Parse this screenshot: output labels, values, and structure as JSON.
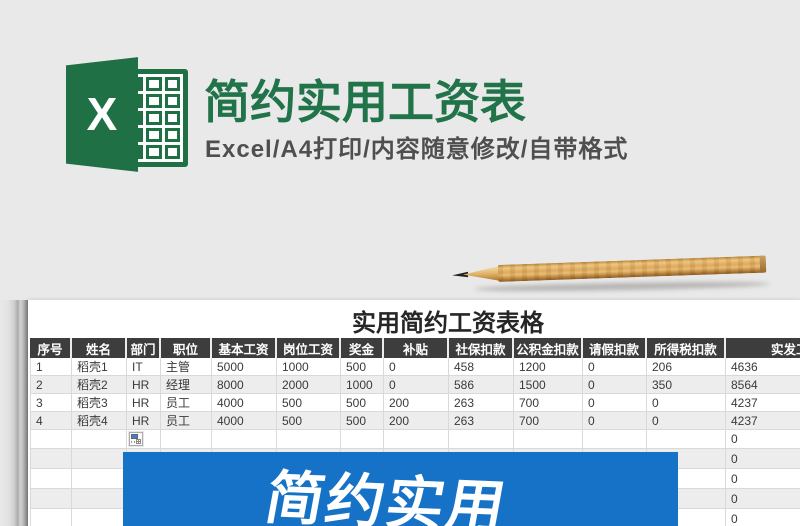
{
  "hero": {
    "title": "简约实用工资表",
    "subtitle": "Excel/A4打印/内容随意修改/自带格式",
    "logo_letter": "X",
    "brand_green": "#1F7145",
    "subtitle_gray": "#4F4F4F"
  },
  "banner": {
    "text": "简约实用",
    "color": "#1572C6"
  },
  "sheet": {
    "title": "实用简约工资表格",
    "header_bg": "#3D3D3D",
    "table": {
      "headers": [
        "序号",
        "姓名",
        "部门",
        "职位",
        "基本工资",
        "岗位工资",
        "奖金",
        "补贴",
        "社保扣款",
        "公积金扣款",
        "请假扣款",
        "所得税扣款",
        "实发工资"
      ],
      "rows": [
        [
          "1",
          "稻壳1",
          "IT",
          "主管",
          "5000",
          "1000",
          "500",
          "0",
          "458",
          "1200",
          "0",
          "206",
          "4636"
        ],
        [
          "2",
          "稻壳2",
          "HR",
          "经理",
          "8000",
          "2000",
          "1000",
          "0",
          "586",
          "1500",
          "0",
          "350",
          "8564"
        ],
        [
          "3",
          "稻壳3",
          "HR",
          "员工",
          "4000",
          "500",
          "500",
          "200",
          "263",
          "700",
          "0",
          "0",
          "4237"
        ],
        [
          "4",
          "稻壳4",
          "HR",
          "员工",
          "4000",
          "500",
          "500",
          "200",
          "263",
          "700",
          "0",
          "0",
          "4237"
        ]
      ],
      "trailing_rows_last_col": [
        "0",
        "0",
        "0",
        "0",
        "0"
      ]
    }
  }
}
